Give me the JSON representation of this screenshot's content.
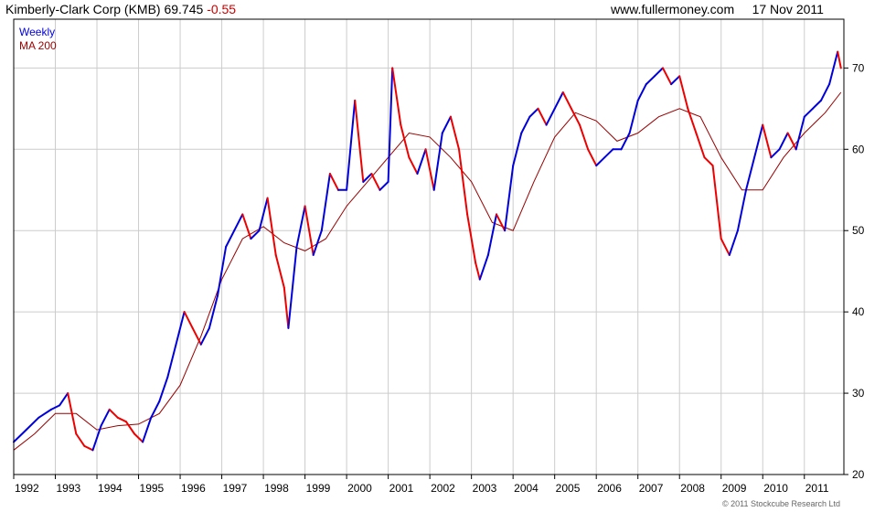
{
  "header": {
    "company": "Kimberly-Clark Corp (KMB)",
    "price": "69.745",
    "change": "-0.55",
    "site": "www.fullermoney.com",
    "date": "17 Nov 2011"
  },
  "credit": "© 2011 Stockcube Research Ltd",
  "colors": {
    "up": "#0000dd",
    "down": "#ee0000",
    "ma": "#990000",
    "grid": "#cccccc",
    "axis": "#000000"
  },
  "chart_data": {
    "type": "line",
    "title": "Kimberly-Clark Corp (KMB)",
    "xlabel": "",
    "ylabel": "",
    "xlim": [
      1992.0,
      2011.95
    ],
    "ylim": [
      20,
      76
    ],
    "x_ticks": [
      "1992",
      "1993",
      "1994",
      "1995",
      "1996",
      "1997",
      "1998",
      "1999",
      "2000",
      "2001",
      "2002",
      "2003",
      "2004",
      "2005",
      "2006",
      "2007",
      "2008",
      "2009",
      "2010",
      "2011"
    ],
    "y_ticks": [
      20,
      30,
      40,
      50,
      60,
      70
    ],
    "grid": true,
    "legend_position": "top-left",
    "series": [
      {
        "name": "Weekly",
        "x": [
          1992.0,
          1992.3,
          1992.6,
          1992.9,
          1993.1,
          1993.3,
          1993.5,
          1993.7,
          1993.9,
          1994.1,
          1994.3,
          1994.5,
          1994.7,
          1994.9,
          1995.1,
          1995.3,
          1995.5,
          1995.7,
          1995.9,
          1996.1,
          1996.3,
          1996.5,
          1996.7,
          1996.9,
          1997.1,
          1997.3,
          1997.5,
          1997.7,
          1997.9,
          1998.1,
          1998.3,
          1998.5,
          1998.6,
          1998.8,
          1999.0,
          1999.2,
          1999.4,
          1999.6,
          1999.8,
          2000.0,
          2000.2,
          2000.4,
          2000.6,
          2000.8,
          2001.0,
          2001.1,
          2001.3,
          2001.5,
          2001.7,
          2001.9,
          2002.1,
          2002.3,
          2002.5,
          2002.7,
          2002.9,
          2003.1,
          2003.2,
          2003.4,
          2003.6,
          2003.8,
          2004.0,
          2004.2,
          2004.4,
          2004.6,
          2004.8,
          2005.0,
          2005.2,
          2005.4,
          2005.6,
          2005.8,
          2006.0,
          2006.2,
          2006.4,
          2006.6,
          2006.8,
          2007.0,
          2007.2,
          2007.4,
          2007.6,
          2007.8,
          2008.0,
          2008.2,
          2008.4,
          2008.6,
          2008.8,
          2009.0,
          2009.2,
          2009.4,
          2009.6,
          2009.8,
          2010.0,
          2010.2,
          2010.4,
          2010.6,
          2010.8,
          2011.0,
          2011.2,
          2011.4,
          2011.6,
          2011.8,
          2011.88
        ],
        "values": [
          24,
          25.5,
          27,
          28,
          28.5,
          30,
          25,
          23.5,
          23,
          26,
          28,
          27,
          26.5,
          25,
          24,
          27,
          29,
          32,
          36,
          40,
          38,
          36,
          38,
          42,
          48,
          50,
          52,
          49,
          50,
          54,
          47,
          43,
          38,
          48,
          53,
          47,
          50,
          57,
          55,
          55,
          66,
          56,
          57,
          55,
          56,
          70,
          63,
          59,
          57,
          60,
          55,
          62,
          64,
          60,
          52,
          46,
          44,
          47,
          52,
          50,
          58,
          62,
          64,
          65,
          63,
          65,
          67,
          65,
          63,
          60,
          58,
          59,
          60,
          60,
          62,
          66,
          68,
          69,
          70,
          68,
          69,
          65,
          62,
          59,
          58,
          49,
          47,
          50,
          55,
          59,
          63,
          59,
          60,
          62,
          60,
          64,
          65,
          66,
          68,
          72,
          70
        ]
      },
      {
        "name": "MA 200",
        "x": [
          1992.0,
          1992.5,
          1993.0,
          1993.5,
          1994.0,
          1994.5,
          1995.0,
          1995.5,
          1996.0,
          1996.5,
          1997.0,
          1997.5,
          1998.0,
          1998.5,
          1999.0,
          1999.5,
          2000.0,
          2000.5,
          2001.0,
          2001.5,
          2002.0,
          2002.5,
          2003.0,
          2003.5,
          2004.0,
          2004.5,
          2005.0,
          2005.5,
          2006.0,
          2006.5,
          2007.0,
          2007.5,
          2008.0,
          2008.5,
          2009.0,
          2009.5,
          2010.0,
          2010.5,
          2011.0,
          2011.5,
          2011.88
        ],
        "values": [
          23,
          25,
          27.5,
          27.5,
          25.5,
          26,
          26.2,
          27.5,
          31,
          37,
          44,
          49,
          50.5,
          48.5,
          47.5,
          49,
          53,
          56,
          59,
          62,
          61.5,
          59,
          56,
          51,
          50,
          56,
          61.5,
          64.5,
          63.5,
          61,
          62,
          64,
          65,
          64,
          59,
          55,
          55,
          59,
          62,
          64.5,
          67
        ]
      }
    ]
  }
}
